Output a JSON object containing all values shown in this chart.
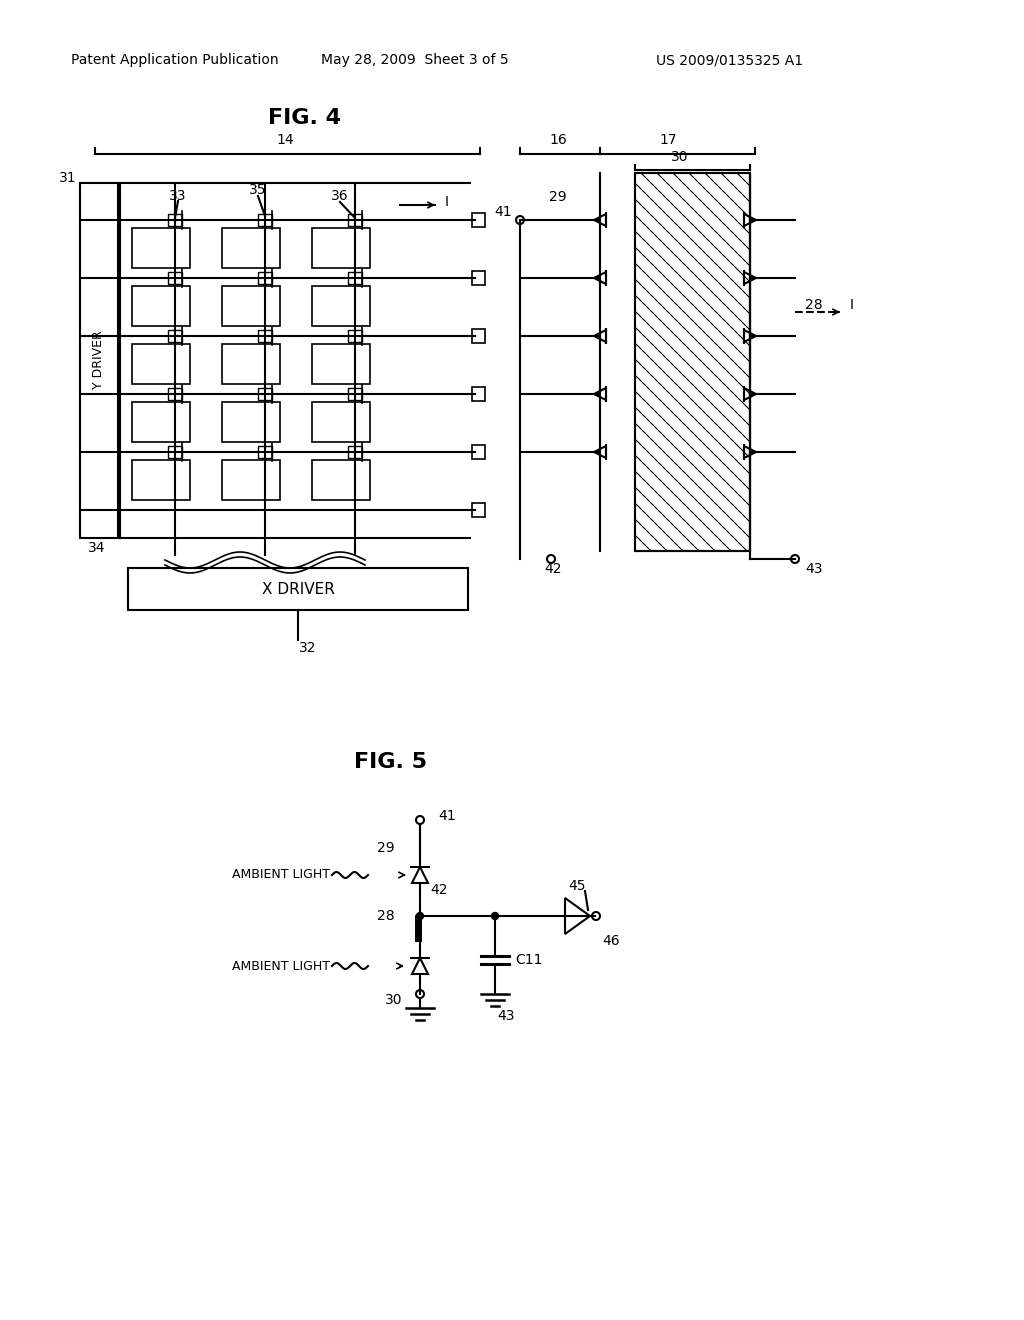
{
  "bg_color": "#ffffff",
  "text_color": "#000000",
  "header_text": "Patent Application Publication",
  "header_date": "May 28, 2009  Sheet 3 of 5",
  "header_patent": "US 2009/0135325 A1",
  "fig4_title": "FIG. 4",
  "fig5_title": "FIG. 5",
  "line_color": "#000000",
  "line_width": 1.5
}
